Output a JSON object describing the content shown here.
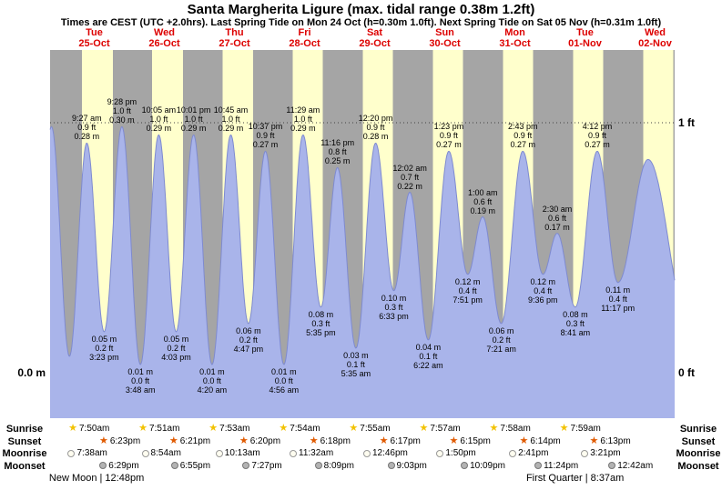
{
  "header": {
    "title": "Santa Margherita Ligure (max. tidal range 0.38m 1.2ft)",
    "subtitle": "Times are CEST (UTC +2.0hrs). Last Spring Tide on Mon 24 Oct (h=0.30m 1.0ft). Next Spring Tide on Sat 05 Nov (h=0.31m 1.0ft)"
  },
  "axes": {
    "left_label": "0.0 m",
    "right_top_label": "1 ft",
    "right_bottom_label": "0 ft"
  },
  "days": [
    {
      "name": "Tue",
      "date": "25-Oct"
    },
    {
      "name": "Wed",
      "date": "26-Oct"
    },
    {
      "name": "Thu",
      "date": "27-Oct"
    },
    {
      "name": "Fri",
      "date": "28-Oct"
    },
    {
      "name": "Sat",
      "date": "29-Oct"
    },
    {
      "name": "Sun",
      "date": "30-Oct"
    },
    {
      "name": "Mon",
      "date": "31-Oct"
    },
    {
      "name": "Tue",
      "date": "01-Nov"
    },
    {
      "name": "Wed",
      "date": "02-Nov"
    }
  ],
  "colors": {
    "day_band": "#ffffcc",
    "night_band": "#a5a5a5",
    "tide_fill": "#a9b4ea",
    "tide_stroke": "#7e8ad0",
    "date_text": "#dd0000",
    "sunrise_star": "#f2c200",
    "sunset_star": "#e05a00",
    "moonrise_fill": "#fffdf0",
    "moonset_fill": "#b3b3b3"
  },
  "astro": {
    "row_labels": [
      "Sunrise",
      "Sunset",
      "Moonrise",
      "Moonset"
    ],
    "sunrise": [
      {
        "day": 0,
        "time": "7:50am"
      },
      {
        "day": 1,
        "time": "7:51am"
      },
      {
        "day": 2,
        "time": "7:53am"
      },
      {
        "day": 3,
        "time": "7:54am"
      },
      {
        "day": 4,
        "time": "7:55am"
      },
      {
        "day": 5,
        "time": "7:57am"
      },
      {
        "day": 6,
        "time": "7:58am"
      },
      {
        "day": 7,
        "time": "7:59am"
      }
    ],
    "sunset": [
      {
        "day": 0,
        "time": "6:23pm"
      },
      {
        "day": 1,
        "time": "6:21pm"
      },
      {
        "day": 2,
        "time": "6:20pm"
      },
      {
        "day": 3,
        "time": "6:18pm"
      },
      {
        "day": 4,
        "time": "6:17pm"
      },
      {
        "day": 5,
        "time": "6:15pm"
      },
      {
        "day": 6,
        "time": "6:14pm"
      },
      {
        "day": 7,
        "time": "6:13pm"
      }
    ],
    "moonrise": [
      {
        "day": 0,
        "time": "7:38am"
      },
      {
        "day": 1,
        "time": "8:54am"
      },
      {
        "day": 2,
        "time": "10:13am"
      },
      {
        "day": 3,
        "time": "11:32am"
      },
      {
        "day": 4,
        "time": "12:46pm"
      },
      {
        "day": 5,
        "time": "1:50pm"
      },
      {
        "day": 6,
        "time": "2:41pm"
      },
      {
        "day": 7,
        "time": "3:21pm"
      }
    ],
    "moonset": [
      {
        "day": 0,
        "time": "6:29pm"
      },
      {
        "day": 1,
        "time": "6:55pm"
      },
      {
        "day": 2,
        "time": "7:27pm"
      },
      {
        "day": 3,
        "time": "8:09pm"
      },
      {
        "day": 4,
        "time": "9:03pm"
      },
      {
        "day": 5,
        "time": "10:09pm"
      },
      {
        "day": 6,
        "time": "11:24pm"
      },
      {
        "day": 8,
        "time": "12:42am"
      }
    ]
  },
  "moon_phases": [
    {
      "label": "New Moon | 12:48pm",
      "day": 0,
      "time": "12:48pm"
    },
    {
      "label": "First Quarter | 8:37am",
      "day": 7,
      "time": "8:37am"
    }
  ],
  "chart_data": {
    "type": "area",
    "title": "Santa Margherita Ligure tide height",
    "ylabel_left": "meters",
    "ylabel_right": "feet",
    "ylim_m": [
      -0.055,
      0.394
    ],
    "y_ticks": [
      {
        "label": "0.0 m",
        "side": "left",
        "ft": 0
      },
      {
        "label": "1 ft",
        "side": "right",
        "ft": 1
      },
      {
        "label": "0 ft",
        "side": "right",
        "ft": 0
      }
    ],
    "tide_events": [
      {
        "type": "high",
        "day": 0,
        "time": "9:27 am",
        "height_m": 0.28,
        "label_ft": "0.9 ft",
        "label_m": "0.28 m"
      },
      {
        "type": "low",
        "day": 0,
        "time": "3:23 pm",
        "height_m": 0.05,
        "label_ft": "0.2 ft",
        "label_m": "0.05 m"
      },
      {
        "type": "high",
        "day": 0,
        "time": "9:28 pm",
        "height_m": 0.3,
        "label_ft": "1.0 ft",
        "label_m": "0.30 m"
      },
      {
        "type": "low",
        "day": 1,
        "time": "3:48 am",
        "height_m": 0.01,
        "label_ft": "0.0 ft",
        "label_m": "0.01 m"
      },
      {
        "type": "high",
        "day": 1,
        "time": "10:05 am",
        "height_m": 0.29,
        "label_ft": "1.0 ft",
        "label_m": "0.29 m"
      },
      {
        "type": "low",
        "day": 1,
        "time": "4:03 pm",
        "height_m": 0.05,
        "label_ft": "0.2 ft",
        "label_m": "0.05 m"
      },
      {
        "type": "high",
        "day": 1,
        "time": "10:01 pm",
        "height_m": 0.29,
        "label_ft": "1.0 ft",
        "label_m": "0.29 m"
      },
      {
        "type": "low",
        "day": 2,
        "time": "4:20 am",
        "height_m": 0.01,
        "label_ft": "0.0 ft",
        "label_m": "0.01 m"
      },
      {
        "type": "high",
        "day": 2,
        "time": "10:45 am",
        "height_m": 0.29,
        "label_ft": "1.0 ft",
        "label_m": "0.29 m"
      },
      {
        "type": "low",
        "day": 2,
        "time": "4:47 pm",
        "height_m": 0.06,
        "label_ft": "0.2 ft",
        "label_m": "0.06 m"
      },
      {
        "type": "high",
        "day": 2,
        "time": "10:37 pm",
        "height_m": 0.27,
        "label_ft": "0.9 ft",
        "label_m": "0.27 m"
      },
      {
        "type": "low",
        "day": 3,
        "time": "4:56 am",
        "height_m": 0.01,
        "label_ft": "0.0 ft",
        "label_m": "0.01 m"
      },
      {
        "type": "high",
        "day": 3,
        "time": "11:29 am",
        "height_m": 0.29,
        "label_ft": "1.0 ft",
        "label_m": "0.29 m"
      },
      {
        "type": "low",
        "day": 3,
        "time": "5:35 pm",
        "height_m": 0.08,
        "label_ft": "0.3 ft",
        "label_m": "0.08 m"
      },
      {
        "type": "high",
        "day": 3,
        "time": "11:16 pm",
        "height_m": 0.25,
        "label_ft": "0.8 ft",
        "label_m": "0.25 m"
      },
      {
        "type": "low",
        "day": 4,
        "time": "5:35 am",
        "height_m": 0.03,
        "label_ft": "0.1 ft",
        "label_m": "0.03 m"
      },
      {
        "type": "high",
        "day": 4,
        "time": "12:20 pm",
        "height_m": 0.28,
        "label_ft": "0.9 ft",
        "label_m": "0.28 m"
      },
      {
        "type": "low",
        "day": 4,
        "time": "6:33 pm",
        "height_m": 0.1,
        "label_ft": "0.3 ft",
        "label_m": "0.10 m"
      },
      {
        "type": "high",
        "day": 5,
        "time": "12:02 am",
        "height_m": 0.22,
        "label_ft": "0.7 ft",
        "label_m": "0.22 m"
      },
      {
        "type": "low",
        "day": 5,
        "time": "6:22 am",
        "height_m": 0.04,
        "label_ft": "0.1 ft",
        "label_m": "0.04 m"
      },
      {
        "type": "high",
        "day": 5,
        "time": "1:23 pm",
        "height_m": 0.27,
        "label_ft": "0.9 ft",
        "label_m": "0.27 m"
      },
      {
        "type": "low",
        "day": 5,
        "time": "7:51 pm",
        "height_m": 0.12,
        "label_ft": "0.4 ft",
        "label_m": "0.12 m"
      },
      {
        "type": "high",
        "day": 6,
        "time": "1:00 am",
        "height_m": 0.19,
        "label_ft": "0.6 ft",
        "label_m": "0.19 m"
      },
      {
        "type": "low",
        "day": 6,
        "time": "7:21 am",
        "height_m": 0.06,
        "label_ft": "0.2 ft",
        "label_m": "0.06 m"
      },
      {
        "type": "high",
        "day": 6,
        "time": "2:43 pm",
        "height_m": 0.27,
        "label_ft": "0.9 ft",
        "label_m": "0.27 m"
      },
      {
        "type": "low",
        "day": 6,
        "time": "9:36 pm",
        "height_m": 0.12,
        "label_ft": "0.4 ft",
        "label_m": "0.12 m"
      },
      {
        "type": "high",
        "day": 7,
        "time": "2:30 am",
        "height_m": 0.17,
        "label_ft": "0.6 ft",
        "label_m": "0.17 m"
      },
      {
        "type": "low",
        "day": 7,
        "time": "8:41 am",
        "height_m": 0.08,
        "label_ft": "0.3 ft",
        "label_m": "0.08 m"
      },
      {
        "type": "high",
        "day": 7,
        "time": "4:12 pm",
        "height_m": 0.27,
        "label_ft": "0.9 ft",
        "label_m": "0.27 m"
      },
      {
        "type": "low",
        "day": 7,
        "time": "11:17 pm",
        "height_m": 0.11,
        "label_ft": "0.4 ft",
        "label_m": "0.11 m"
      }
    ],
    "unlabeled_extremes": [
      {
        "t": -0.38,
        "m": 0.04
      },
      {
        "t": -0.11,
        "m": 0.3
      },
      {
        "t": 0.146,
        "m": 0.02
      },
      {
        "t": 8.4,
        "m": 0.26
      },
      {
        "t": 9.0,
        "m": 0.05
      }
    ]
  }
}
